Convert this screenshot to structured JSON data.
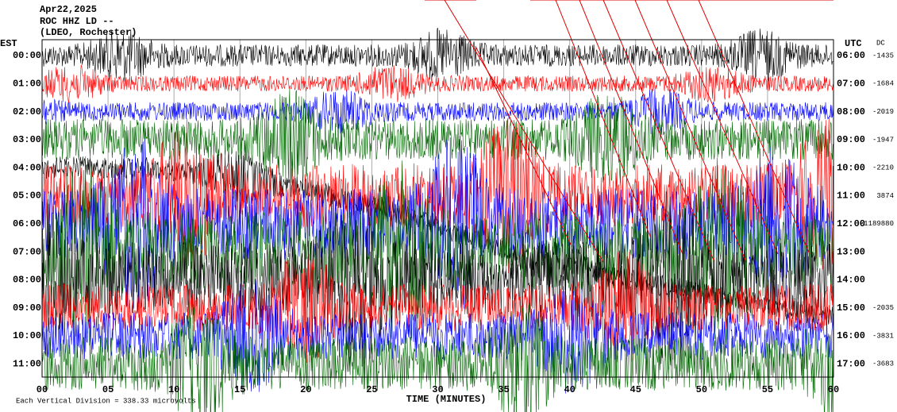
{
  "header": {
    "lines": [
      "Apr22,2025",
      "ROC HHZ LD --",
      "(LDEO, Rochester)"
    ],
    "left_title": "EST",
    "right_title": "UTC",
    "dc_title": "DC"
  },
  "rows": [
    {
      "est": "00:00",
      "utc": "06:00",
      "dc": "-1435"
    },
    {
      "est": "01:00",
      "utc": "07:00",
      "dc": "-1684"
    },
    {
      "est": "02:00",
      "utc": "08:00",
      "dc": "-2019"
    },
    {
      "est": "03:00",
      "utc": "09:00",
      "dc": "-1947"
    },
    {
      "est": "04:00",
      "utc": "10:00",
      "dc": "-2210"
    },
    {
      "est": "05:00",
      "utc": "11:00",
      "dc": "3874"
    },
    {
      "est": "06:00",
      "utc": "12:00",
      "dc": "-1189880"
    },
    {
      "est": "07:00",
      "utc": "13:00"
    },
    {
      "est": "08:00",
      "utc": "14:00"
    },
    {
      "est": "09:00",
      "utc": "15:00",
      "dc": "-2035"
    },
    {
      "est": "10:00",
      "utc": "16:00",
      "dc": "-3831"
    },
    {
      "est": "11:00",
      "utc": "17:00",
      "dc": "-3683"
    }
  ],
  "x_axis": {
    "label": "TIME (MINUTES)",
    "ticks": [
      "00",
      "05",
      "10",
      "15",
      "20",
      "25",
      "30",
      "35",
      "40",
      "45",
      "50",
      "55",
      "60"
    ]
  },
  "footer": "Each Vertical Division = 338.33 microvolts"
}
